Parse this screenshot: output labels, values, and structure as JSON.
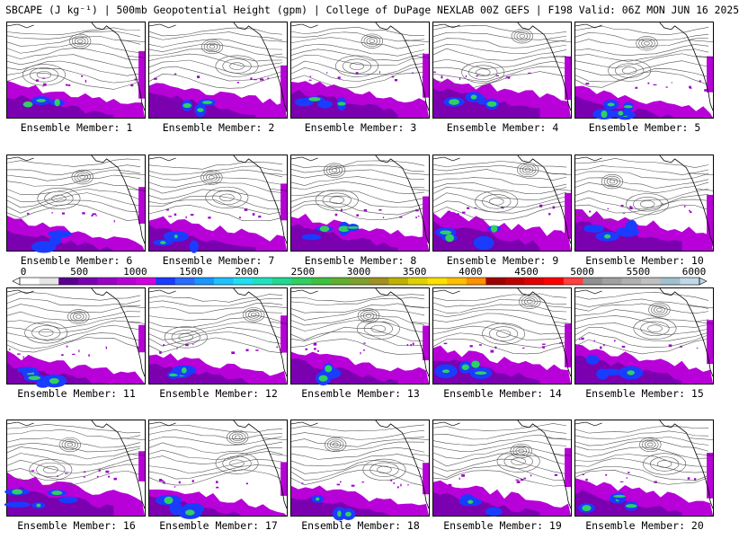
{
  "title": "SBCAPE (J kg⁻¹) | 500mb Geopotential Height (gpm) | College of DuPage NEXLAB 00Z GEFS | F198 Valid: 06Z MON JUN 16 2025",
  "panels": [
    {
      "label": "Ensemble Member: 1"
    },
    {
      "label": "Ensemble Member: 2"
    },
    {
      "label": "Ensemble Member: 3"
    },
    {
      "label": "Ensemble Member: 4"
    },
    {
      "label": "Ensemble Member: 5"
    },
    {
      "label": "Ensemble Member: 6"
    },
    {
      "label": "Ensemble Member: 7"
    },
    {
      "label": "Ensemble Member: 8"
    },
    {
      "label": "Ensemble Member: 9"
    },
    {
      "label": "Ensemble Member: 10"
    },
    {
      "label": "Ensemble Member: 11"
    },
    {
      "label": "Ensemble Member: 12"
    },
    {
      "label": "Ensemble Member: 13"
    },
    {
      "label": "Ensemble Member: 14"
    },
    {
      "label": "Ensemble Member: 15"
    },
    {
      "label": "Ensemble Member: 16"
    },
    {
      "label": "Ensemble Member: 17"
    },
    {
      "label": "Ensemble Member: 18"
    },
    {
      "label": "Ensemble Member: 19"
    },
    {
      "label": "Ensemble Member: 20"
    }
  ],
  "colorbar": {
    "ticks": [
      "0",
      "500",
      "1000",
      "1500",
      "2000",
      "2500",
      "3000",
      "3500",
      "4000",
      "4500",
      "5000",
      "5500",
      "6000"
    ],
    "colors": [
      "#ffffff",
      "#e6e6e6",
      "#5a0090",
      "#7a00b0",
      "#9a00c8",
      "#b800d8",
      "#d200e0",
      "#1a3cff",
      "#2a6cff",
      "#1a96ff",
      "#20c0ff",
      "#20e0f0",
      "#20e0c0",
      "#20d890",
      "#30d060",
      "#40c040",
      "#60b030",
      "#80a030",
      "#a09020",
      "#c0b000",
      "#e0d000",
      "#ffe000",
      "#ffc000",
      "#ff9000",
      "#a00000",
      "#c00000",
      "#e00000",
      "#ff0000",
      "#ff4040",
      "#909090",
      "#a0a0a0",
      "#b0b0b0",
      "#c0c0c0",
      "#a0c0d0",
      "#c0d8e8"
    ]
  }
}
